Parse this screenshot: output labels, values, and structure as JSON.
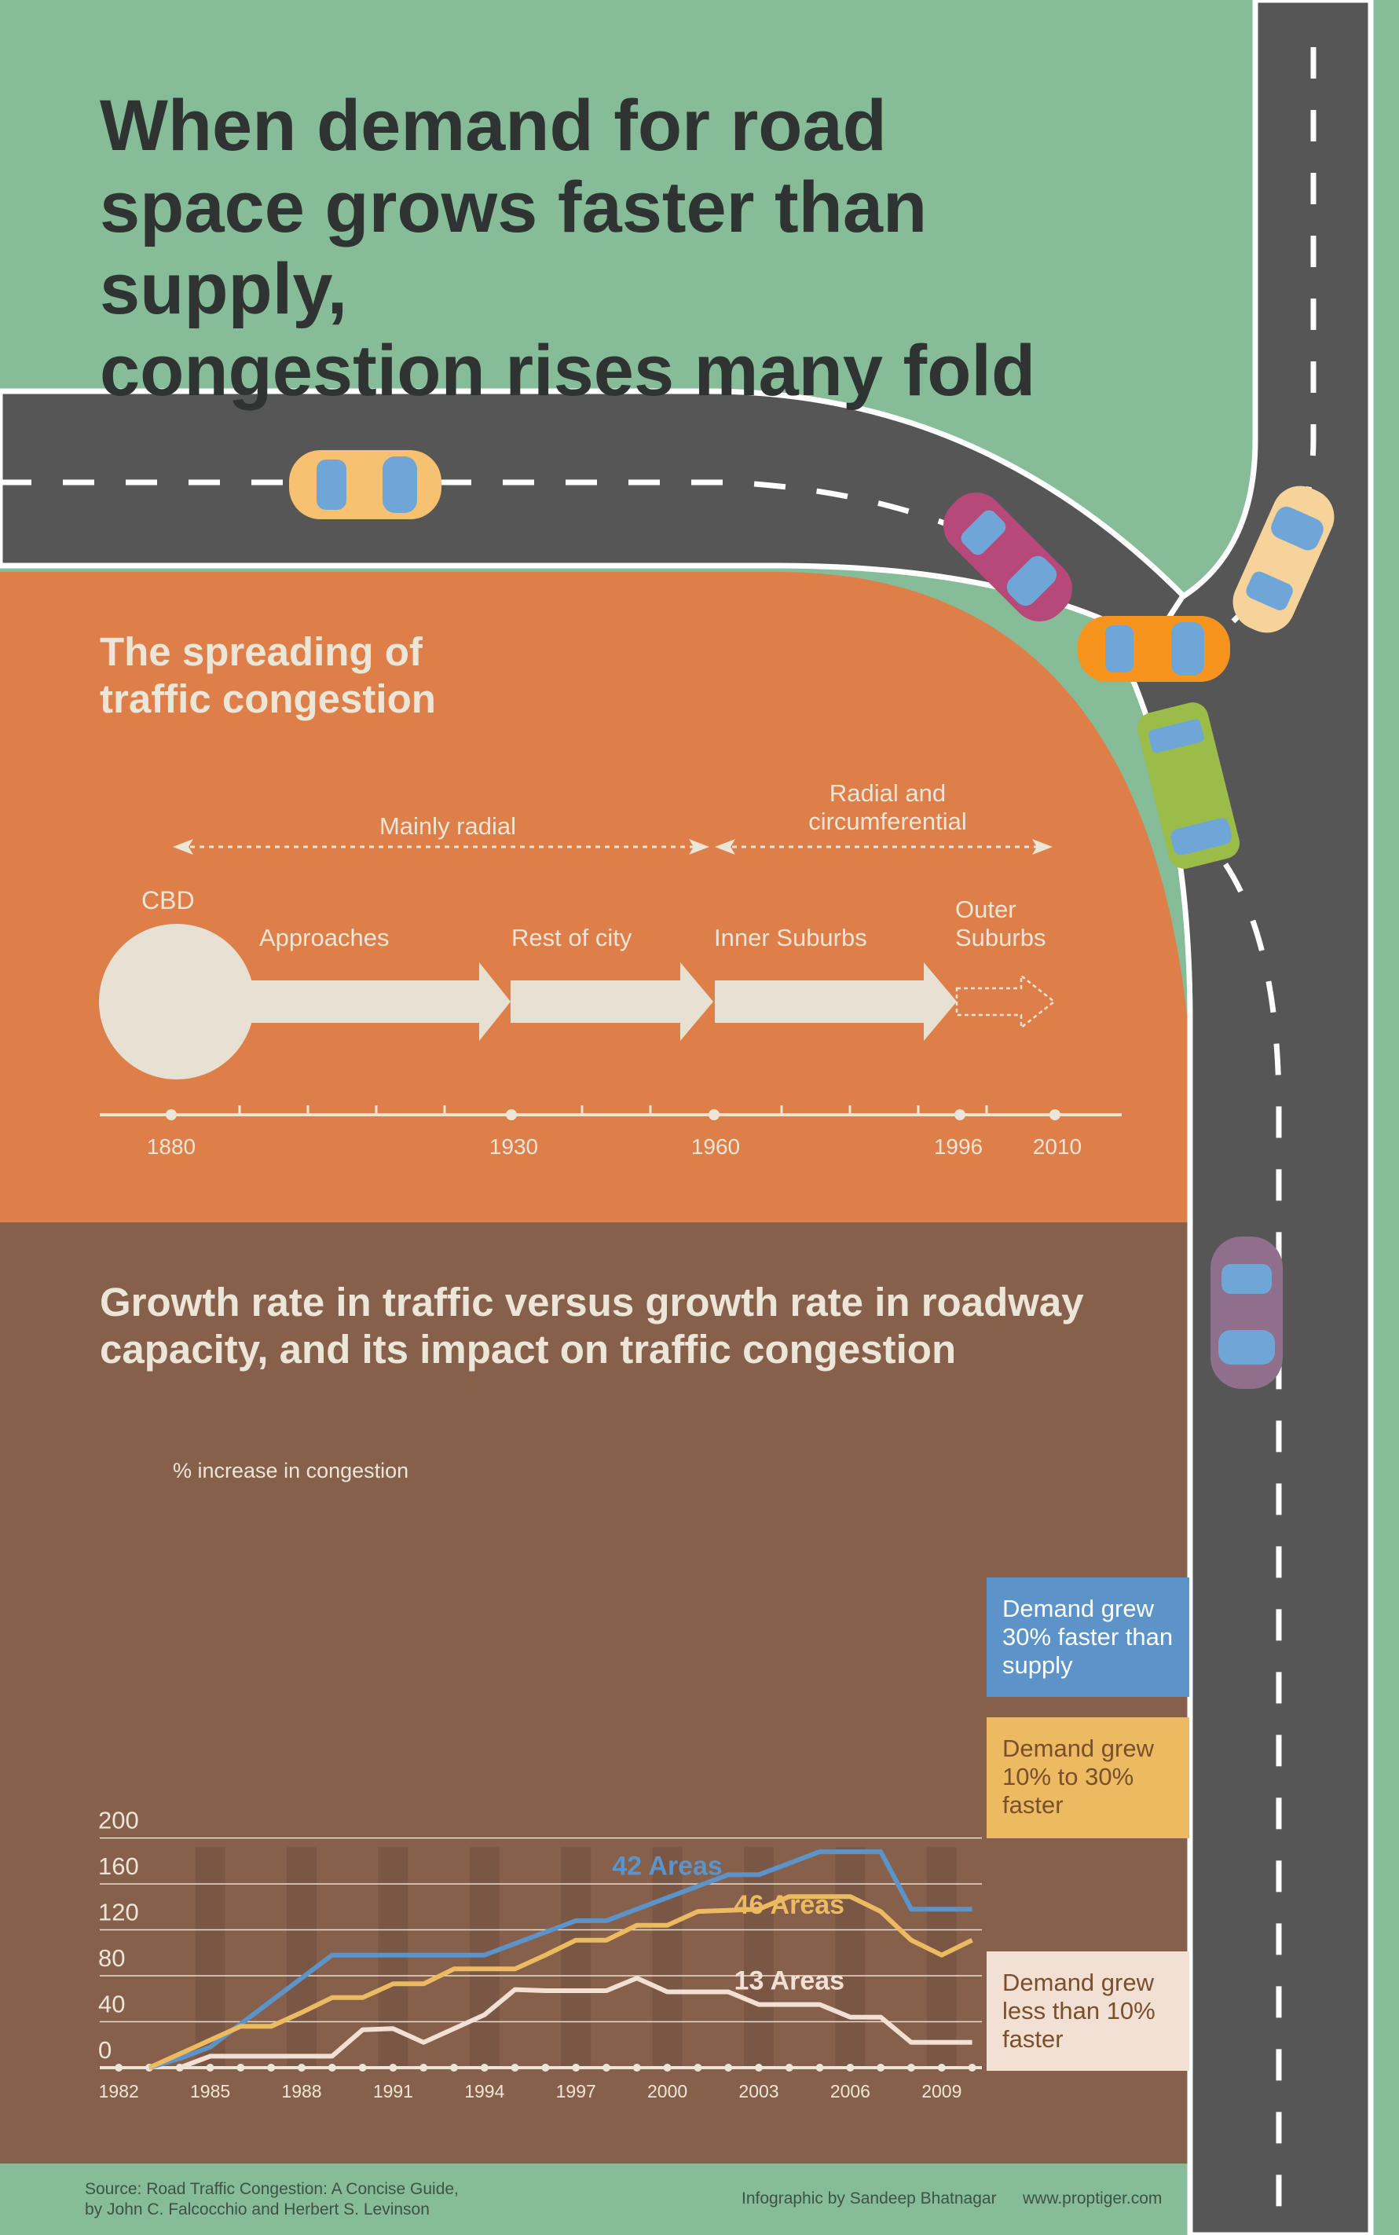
{
  "title_lines": [
    "When demand for road",
    "space grows faster than supply,",
    "congestion rises many fold"
  ],
  "spreading": {
    "title_line1": "The spreading of",
    "title_line2": "traffic congestion",
    "phase1": "Mainly radial",
    "phase2_line1": "Radial and",
    "phase2_line2": "circumferential",
    "cbd": "CBD",
    "stages": [
      "Approaches",
      "Rest of city",
      "Inner Suburbs"
    ],
    "outer_line1": "Outer",
    "outer_line2": "Suburbs",
    "years": [
      "1880",
      "1930",
      "1960",
      "1996",
      "2010"
    ]
  },
  "growth": {
    "title_line1": "Growth rate in traffic versus growth rate in roadway",
    "title_line2": "capacity, and its impact on traffic congestion"
  },
  "chart_data": {
    "type": "line",
    "title": "Growth rate in traffic versus growth rate in roadway capacity, and its impact on traffic congestion",
    "ylabel": "% increase in congestion",
    "xlabel": "",
    "ylim": [
      0,
      200
    ],
    "yticks": [
      "200",
      "160",
      "120",
      "80",
      "40",
      "0"
    ],
    "xtick_labels": [
      "1982",
      "1985",
      "1988",
      "1991",
      "1994",
      "1997",
      "2000",
      "2003",
      "2006",
      "2009"
    ],
    "x": [
      1983,
      1984,
      1985,
      1986,
      1987,
      1988,
      1989,
      1990,
      1991,
      1992,
      1993,
      1994,
      1995,
      1996,
      1997,
      1998,
      1999,
      2000,
      2001,
      2002,
      2003,
      2004,
      2005,
      2006,
      2007,
      2008,
      2009,
      2010
    ],
    "series": [
      {
        "name": "Demand grew 30% faster than supply",
        "annotation": "42 Areas",
        "color": "#5c93c8",
        "values": [
          0,
          8,
          18,
          38,
          58,
          78,
          98,
          98,
          98,
          98,
          98,
          98,
          108,
          118,
          128,
          128,
          138,
          148,
          158,
          168,
          168,
          178,
          188,
          188,
          188,
          138,
          138,
          138
        ]
      },
      {
        "name": "Demand grew 10% to 30% faster",
        "annotation": "46 Areas",
        "color": "#ecbb61",
        "values": [
          0,
          12,
          24,
          36,
          36,
          48,
          61,
          61,
          73,
          73,
          86,
          86,
          86,
          98,
          111,
          111,
          124,
          124,
          136,
          137,
          138,
          149,
          149,
          149,
          136,
          111,
          98,
          111
        ]
      },
      {
        "name": "Demand grew less than 10% faster",
        "annotation": "13 Areas",
        "color": "#f2e0d4",
        "values": [
          null,
          0,
          10,
          10,
          10,
          10,
          10,
          33,
          34,
          22,
          34,
          46,
          68,
          67,
          67,
          67,
          78,
          66,
          66,
          66,
          55,
          55,
          55,
          44,
          44,
          22,
          22,
          22
        ]
      }
    ],
    "legend": [
      {
        "lines": [
          "Demand grew",
          "30% faster than",
          "supply"
        ],
        "bg": "#5c93c8",
        "fg": "#ffffff"
      },
      {
        "lines": [
          "Demand grew",
          "10% to 30%",
          "faster"
        ],
        "bg": "#ecbb61",
        "fg": "#7a4f2c"
      },
      {
        "lines": [
          "Demand grew",
          "less than 10%",
          "faster"
        ],
        "bg": "#f2e0d4",
        "fg": "#7a4f2c"
      }
    ]
  },
  "footer": {
    "source_line1": "Source: Road Traffic Congestion: A Concise Guide,",
    "source_line2": "by John C. Falcocchio and Herbert S. Levinson",
    "credit": "Infographic by Sandeep Bhatnagar",
    "url": "www.proptiger.com"
  },
  "colors": {
    "green_bg": "#86bc98",
    "road": "#575656",
    "orange_panel": "#de7f4a",
    "brown_panel": "#87604c",
    "cream": "#e6e1d3"
  },
  "icons": [
    "car-icon"
  ]
}
